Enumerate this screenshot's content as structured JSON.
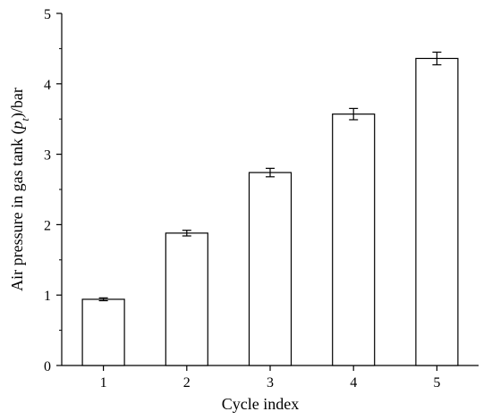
{
  "chart_data": {
    "type": "bar",
    "categories": [
      "1",
      "2",
      "3",
      "4",
      "5"
    ],
    "values": [
      0.94,
      1.88,
      2.74,
      3.57,
      4.36
    ],
    "errors": [
      0.02,
      0.04,
      0.06,
      0.08,
      0.09
    ],
    "xlabel": "Cycle index",
    "ylabel_parts": [
      "Air pressure in gas tank (",
      "p",
      "t",
      ")/bar"
    ],
    "ylim": [
      0,
      5
    ],
    "yticks": [
      "0",
      "1",
      "2",
      "3",
      "4",
      "5"
    ],
    "grid": false,
    "bar_fill": "#ffffff",
    "bar_stroke": "#000000"
  }
}
